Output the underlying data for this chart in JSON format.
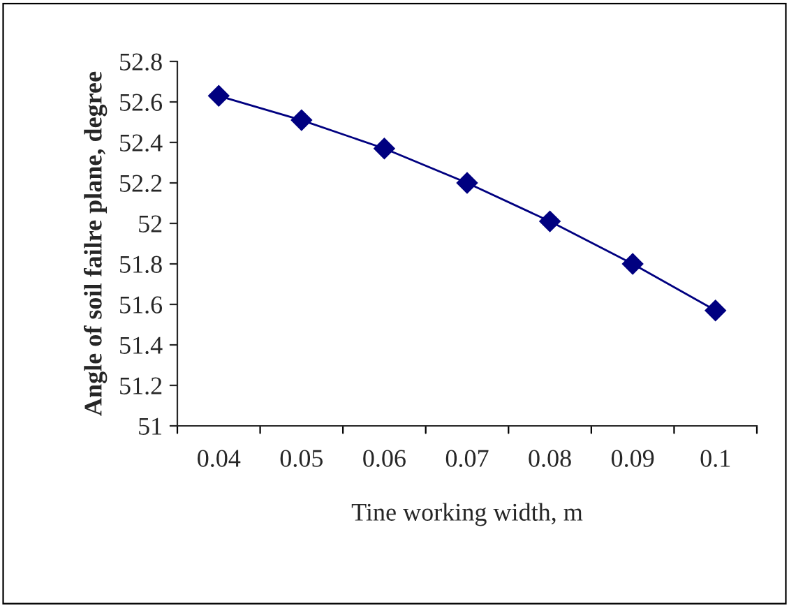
{
  "chart_data": {
    "type": "line",
    "xlabel": "Tine working width, m",
    "ylabel": "Angle of soil failre plane, degree",
    "categories": [
      "0.04",
      "0.05",
      "0.06",
      "0.07",
      "0.08",
      "0.09",
      "0.1"
    ],
    "series": [
      {
        "color": "#000080",
        "values": [
          52.63,
          52.51,
          52.37,
          52.2,
          52.01,
          51.8,
          51.57
        ]
      }
    ],
    "ylim": [
      51,
      52.8
    ],
    "yticks": [
      51,
      51.2,
      51.4,
      51.6,
      51.8,
      52,
      52.2,
      52.4,
      52.6,
      52.8
    ],
    "marker": "diamond",
    "line_style": "solid",
    "grid": false,
    "legend": false
  }
}
